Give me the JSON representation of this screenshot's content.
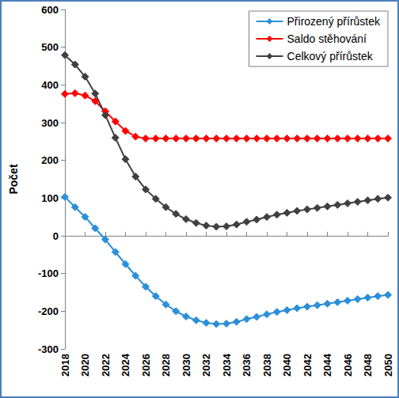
{
  "chart_data": {
    "type": "line",
    "y_label": "Počet",
    "x": [
      2018,
      2019,
      2020,
      2021,
      2022,
      2023,
      2024,
      2025,
      2026,
      2027,
      2028,
      2029,
      2030,
      2031,
      2032,
      2033,
      2034,
      2035,
      2036,
      2037,
      2038,
      2039,
      2040,
      2041,
      2042,
      2043,
      2044,
      2045,
      2046,
      2047,
      2048,
      2049,
      2050
    ],
    "series": [
      {
        "name": "Přirozený přírůstek",
        "color": "#2b8fd8",
        "marker": "diamond",
        "values": [
          103,
          76,
          50,
          20,
          -10,
          -43,
          -75,
          -106,
          -135,
          -160,
          -182,
          -200,
          -214,
          -224,
          -231,
          -234,
          -233,
          -228,
          -221,
          -215,
          -208,
          -202,
          -197,
          -192,
          -188,
          -184,
          -180,
          -176,
          -172,
          -168,
          -164,
          -160,
          -157
        ]
      },
      {
        "name": "Saldo stěhování",
        "color": "#ff0000",
        "marker": "diamond",
        "values": [
          376,
          378,
          372,
          357,
          330,
          303,
          278,
          263,
          258,
          258,
          258,
          258,
          258,
          258,
          258,
          258,
          258,
          258,
          258,
          258,
          258,
          258,
          258,
          258,
          258,
          258,
          258,
          258,
          258,
          258,
          258,
          258,
          258
        ]
      },
      {
        "name": "Celkový přírůstek",
        "color": "#404040",
        "marker": "diamond",
        "values": [
          479,
          454,
          422,
          377,
          320,
          260,
          203,
          157,
          123,
          98,
          76,
          58,
          44,
          34,
          27,
          24,
          25,
          30,
          37,
          43,
          50,
          56,
          61,
          66,
          70,
          74,
          78,
          82,
          86,
          90,
          94,
          98,
          101
        ]
      }
    ],
    "xlim": [
      2018,
      2050
    ],
    "xticks": [
      2018,
      2020,
      2022,
      2024,
      2026,
      2028,
      2030,
      2032,
      2034,
      2036,
      2038,
      2040,
      2042,
      2044,
      2046,
      2048,
      2050
    ],
    "ylim": [
      -300,
      600
    ],
    "yticks": [
      -300,
      -200,
      -100,
      0,
      100,
      200,
      300,
      400,
      500,
      600
    ],
    "grid": false,
    "legend": "upper right"
  }
}
